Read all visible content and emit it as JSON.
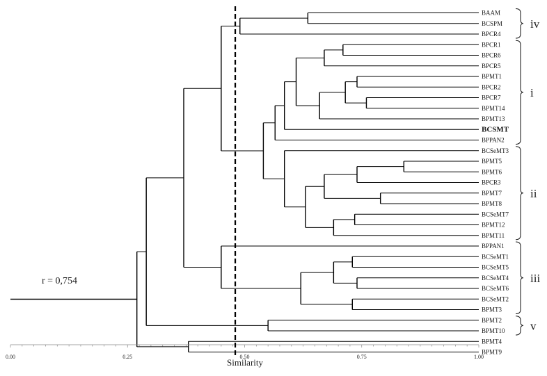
{
  "figure": {
    "correlation_label": "r = 0,754",
    "axis_title": "Similarity",
    "threshold": 0.48
  },
  "axis": {
    "min": 0,
    "max": 1,
    "ticks": [
      "0.00",
      "0.25",
      "0.50",
      "0.75",
      "1.00"
    ],
    "minor_step": 0.025
  },
  "leaves": [
    {
      "name": "BAAM"
    },
    {
      "name": "BCSPM"
    },
    {
      "name": "BPCR4"
    },
    {
      "name": "BPCR1"
    },
    {
      "name": "BPCR6"
    },
    {
      "name": "BPCR5"
    },
    {
      "name": "BPMT1"
    },
    {
      "name": "BPCR2"
    },
    {
      "name": "BPCR7"
    },
    {
      "name": "BPMT14"
    },
    {
      "name": "BPMT13"
    },
    {
      "name": "BCSMT",
      "bold": true
    },
    {
      "name": "BPPAN2"
    },
    {
      "name": "BCSeMT3"
    },
    {
      "name": "BPMT5"
    },
    {
      "name": "BPMT6"
    },
    {
      "name": "BPCR3"
    },
    {
      "name": "BPMT7"
    },
    {
      "name": "BPMT8"
    },
    {
      "name": "BCSeMT7"
    },
    {
      "name": "BPMT12"
    },
    {
      "name": "BPMT11"
    },
    {
      "name": "BPPAN1"
    },
    {
      "name": "BCSeMT1"
    },
    {
      "name": "BCSeMT5"
    },
    {
      "name": "BCSeMT4"
    },
    {
      "name": "BCSeMT6"
    },
    {
      "name": "BCSeMT2"
    },
    {
      "name": "BPMT3"
    },
    {
      "name": "BPMT2"
    },
    {
      "name": "BPMT10"
    },
    {
      "name": "BPMT4"
    },
    {
      "name": "BPMT9"
    }
  ],
  "clusters": [
    {
      "label": "iv",
      "from": 0,
      "to": 2
    },
    {
      "label": "i",
      "from": 3,
      "to": 12
    },
    {
      "label": "ii",
      "from": 13,
      "to": 21
    },
    {
      "label": "iii",
      "from": 22,
      "to": 28
    },
    {
      "label": "v",
      "from": 29,
      "to": 30
    }
  ],
  "tree": {
    "s": 0.27,
    "c": [
      {
        "s": 0.29,
        "c": [
          {
            "s": 0.37,
            "c": [
              {
                "s": 0.45,
                "c": [
                  {
                    "s": 0.49,
                    "c": [
                      {
                        "s": 0.635,
                        "c": [
                          {
                            "l": 0
                          },
                          {
                            "l": 1
                          }
                        ]
                      },
                      {
                        "l": 2
                      }
                    ]
                  },
                  {
                    "s": 0.54,
                    "c": [
                      {
                        "s": 0.565,
                        "c": [
                          {
                            "s": 0.585,
                            "c": [
                              {
                                "s": 0.61,
                                "c": [
                                  {
                                    "s": 0.67,
                                    "c": [
                                      {
                                        "s": 0.71,
                                        "c": [
                                          {
                                            "l": 3
                                          },
                                          {
                                            "l": 4
                                          }
                                        ]
                                      },
                                      {
                                        "l": 5
                                      }
                                    ]
                                  },
                                  {
                                    "s": 0.66,
                                    "c": [
                                      {
                                        "s": 0.715,
                                        "c": [
                                          {
                                            "s": 0.74,
                                            "c": [
                                              {
                                                "l": 6
                                              },
                                              {
                                                "l": 7
                                              }
                                            ]
                                          },
                                          {
                                            "s": 0.76,
                                            "c": [
                                              {
                                                "l": 8
                                              },
                                              {
                                                "l": 9
                                              }
                                            ]
                                          }
                                        ]
                                      },
                                      {
                                        "l": 10
                                      }
                                    ]
                                  }
                                ]
                              },
                              {
                                "l": 11
                              }
                            ]
                          },
                          {
                            "l": 12
                          }
                        ]
                      },
                      {
                        "s": 0.585,
                        "c": [
                          {
                            "l": 13
                          },
                          {
                            "s": 0.63,
                            "c": [
                              {
                                "s": 0.67,
                                "c": [
                                  {
                                    "s": 0.74,
                                    "c": [
                                      {
                                        "s": 0.84,
                                        "c": [
                                          {
                                            "l": 14
                                          },
                                          {
                                            "l": 15
                                          }
                                        ]
                                      },
                                      {
                                        "l": 16
                                      }
                                    ]
                                  },
                                  {
                                    "s": 0.79,
                                    "c": [
                                      {
                                        "l": 17
                                      },
                                      {
                                        "l": 18
                                      }
                                    ]
                                  }
                                ]
                              },
                              {
                                "s": 0.69,
                                "c": [
                                  {
                                    "s": 0.735,
                                    "c": [
                                      {
                                        "l": 19
                                      },
                                      {
                                        "l": 20
                                      }
                                    ]
                                  },
                                  {
                                    "l": 21
                                  }
                                ]
                              }
                            ]
                          }
                        ]
                      }
                    ]
                  }
                ]
              },
              {
                "s": 0.45,
                "c": [
                  {
                    "l": 22
                  },
                  {
                    "s": 0.62,
                    "c": [
                      {
                        "s": 0.69,
                        "c": [
                          {
                            "s": 0.73,
                            "c": [
                              {
                                "l": 23
                              },
                              {
                                "l": 24
                              }
                            ]
                          },
                          {
                            "s": 0.74,
                            "c": [
                              {
                                "l": 25
                              },
                              {
                                "l": 26
                              }
                            ]
                          }
                        ]
                      },
                      {
                        "s": 0.73,
                        "c": [
                          {
                            "l": 27
                          },
                          {
                            "l": 28
                          }
                        ]
                      }
                    ]
                  }
                ]
              }
            ]
          },
          {
            "s": 0.55,
            "c": [
              {
                "l": 29
              },
              {
                "l": 30
              }
            ]
          }
        ]
      },
      {
        "s": 0.38,
        "c": [
          {
            "l": 31
          },
          {
            "l": 32
          }
        ]
      }
    ]
  }
}
